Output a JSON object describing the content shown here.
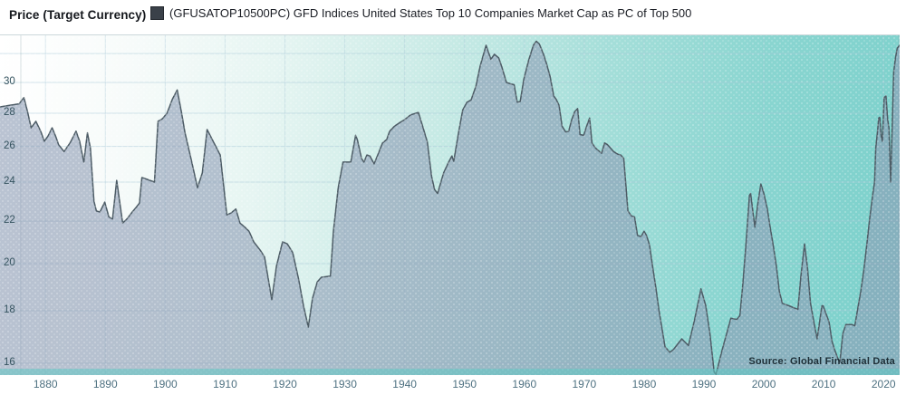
{
  "header": {
    "title": "Price (Target Currency)",
    "series_label": "(GFUSATOP10500PC) GFD Indices United States Top 10 Companies Market Cap as PC of Top 500"
  },
  "source_note": "Source: Global Financial Data",
  "colors": {
    "background_teal": "#7bd0cb",
    "area_fill": "rgba(140,155,180,0.6)",
    "line": "#4d5c66",
    "grid": "#a9c9d8",
    "legend_swatch": "#3a4149",
    "axis_band": "rgba(97,199,195,0.55)"
  },
  "chart_data": {
    "type": "area",
    "title": "(GFUSATOP10500PC) GFD Indices United States Top 10 Companies Market Cap as PC of Top 500",
    "xlabel": "",
    "ylabel": "Price (Target Currency)",
    "y_scale": "log",
    "grid": true,
    "legend_position": "top",
    "xlim": [
      1872.4,
      2022.8
    ],
    "ylim": [
      15.6,
      33.3
    ],
    "x_ticks": [
      1880,
      1890,
      1900,
      1910,
      1920,
      1930,
      1940,
      1950,
      1960,
      1970,
      1980,
      1990,
      2000,
      2010,
      2020
    ],
    "y_ticks": [
      30,
      28,
      26,
      24,
      22,
      20,
      18,
      16
    ],
    "y_gridlines": [
      32,
      30,
      28,
      26,
      24,
      22,
      20,
      18,
      16
    ],
    "series": [
      {
        "name": "(GFUSATOP10500PC) GFD Indices United States Top 10 Companies Market Cap as PC of Top 500",
        "points": [
          [
            1872.4,
            28.4
          ],
          [
            1874.0,
            28.5
          ],
          [
            1875.6,
            28.6
          ],
          [
            1876.4,
            29.0
          ],
          [
            1877.0,
            28.1
          ],
          [
            1877.6,
            27.1
          ],
          [
            1878.4,
            27.5
          ],
          [
            1879.2,
            26.9
          ],
          [
            1879.8,
            26.3
          ],
          [
            1880.4,
            26.6
          ],
          [
            1881.1,
            27.1
          ],
          [
            1881.7,
            26.6
          ],
          [
            1882.2,
            26.1
          ],
          [
            1883.1,
            25.7
          ],
          [
            1884.1,
            26.2
          ],
          [
            1885.1,
            26.9
          ],
          [
            1885.7,
            26.3
          ],
          [
            1886.4,
            25.1
          ],
          [
            1887.0,
            26.8
          ],
          [
            1887.5,
            25.9
          ],
          [
            1888.1,
            23.0
          ],
          [
            1888.5,
            22.5
          ],
          [
            1889.1,
            22.45
          ],
          [
            1889.9,
            22.95
          ],
          [
            1890.6,
            22.2
          ],
          [
            1891.2,
            22.1
          ],
          [
            1891.9,
            24.1
          ],
          [
            1892.9,
            21.9
          ],
          [
            1893.6,
            22.1
          ],
          [
            1894.5,
            22.45
          ],
          [
            1895.2,
            22.7
          ],
          [
            1895.7,
            22.9
          ],
          [
            1896.1,
            24.25
          ],
          [
            1897.0,
            24.15
          ],
          [
            1898.2,
            24.0
          ],
          [
            1898.8,
            27.5
          ],
          [
            1899.5,
            27.65
          ],
          [
            1900.3,
            28.0
          ],
          [
            1901.2,
            28.9
          ],
          [
            1902.0,
            29.5
          ],
          [
            1902.7,
            28.1
          ],
          [
            1903.3,
            26.8
          ],
          [
            1904.3,
            25.3
          ],
          [
            1905.4,
            23.7
          ],
          [
            1906.2,
            24.5
          ],
          [
            1907.0,
            27.0
          ],
          [
            1908.3,
            26.1
          ],
          [
            1909.2,
            25.5
          ],
          [
            1910.3,
            22.3
          ],
          [
            1911.0,
            22.4
          ],
          [
            1911.8,
            22.6
          ],
          [
            1912.5,
            21.9
          ],
          [
            1913.3,
            21.7
          ],
          [
            1914.0,
            21.5
          ],
          [
            1914.8,
            21.0
          ],
          [
            1915.9,
            20.6
          ],
          [
            1916.6,
            20.3
          ],
          [
            1917.8,
            18.45
          ],
          [
            1918.6,
            19.9
          ],
          [
            1919.6,
            21.0
          ],
          [
            1920.4,
            20.9
          ],
          [
            1921.3,
            20.5
          ],
          [
            1922.3,
            19.3
          ],
          [
            1923.1,
            18.2
          ],
          [
            1923.9,
            17.35
          ],
          [
            1924.6,
            18.5
          ],
          [
            1925.4,
            19.2
          ],
          [
            1926.1,
            19.4
          ],
          [
            1927.6,
            19.45
          ],
          [
            1928.1,
            21.5
          ],
          [
            1928.9,
            23.7
          ],
          [
            1929.7,
            25.1
          ],
          [
            1931.0,
            25.1
          ],
          [
            1931.8,
            26.65
          ],
          [
            1932.1,
            26.4
          ],
          [
            1932.8,
            25.3
          ],
          [
            1933.2,
            25.1
          ],
          [
            1933.7,
            25.5
          ],
          [
            1934.2,
            25.45
          ],
          [
            1934.9,
            25.0
          ],
          [
            1935.5,
            25.5
          ],
          [
            1936.3,
            26.2
          ],
          [
            1937.0,
            26.4
          ],
          [
            1937.5,
            26.9
          ],
          [
            1938.3,
            27.2
          ],
          [
            1939.1,
            27.4
          ],
          [
            1940.0,
            27.6
          ],
          [
            1941.0,
            27.9
          ],
          [
            1942.3,
            28.05
          ],
          [
            1943.0,
            27.2
          ],
          [
            1943.8,
            26.25
          ],
          [
            1944.5,
            24.3
          ],
          [
            1945.0,
            23.6
          ],
          [
            1945.5,
            23.4
          ],
          [
            1946.5,
            24.5
          ],
          [
            1947.2,
            25.0
          ],
          [
            1947.9,
            25.45
          ],
          [
            1948.2,
            25.15
          ],
          [
            1949.0,
            26.8
          ],
          [
            1949.7,
            28.2
          ],
          [
            1950.4,
            28.7
          ],
          [
            1951.1,
            28.85
          ],
          [
            1951.9,
            29.75
          ],
          [
            1952.6,
            31.1
          ],
          [
            1953.6,
            32.6
          ],
          [
            1954.4,
            31.6
          ],
          [
            1955.0,
            31.95
          ],
          [
            1955.7,
            31.7
          ],
          [
            1956.2,
            31.1
          ],
          [
            1957.0,
            30.0
          ],
          [
            1957.7,
            29.9
          ],
          [
            1958.3,
            29.85
          ],
          [
            1958.8,
            28.7
          ],
          [
            1959.3,
            28.75
          ],
          [
            1959.9,
            30.2
          ],
          [
            1960.7,
            31.5
          ],
          [
            1961.5,
            32.6
          ],
          [
            1962.0,
            32.9
          ],
          [
            1962.5,
            32.7
          ],
          [
            1963.2,
            31.95
          ],
          [
            1963.7,
            31.3
          ],
          [
            1964.3,
            30.4
          ],
          [
            1964.9,
            29.1
          ],
          [
            1965.3,
            28.9
          ],
          [
            1965.8,
            28.5
          ],
          [
            1966.3,
            27.2
          ],
          [
            1966.9,
            26.85
          ],
          [
            1967.4,
            26.9
          ],
          [
            1967.9,
            27.6
          ],
          [
            1968.4,
            28.1
          ],
          [
            1968.9,
            28.3
          ],
          [
            1969.3,
            26.7
          ],
          [
            1969.9,
            26.65
          ],
          [
            1970.4,
            27.2
          ],
          [
            1970.9,
            27.7
          ],
          [
            1971.3,
            26.2
          ],
          [
            1971.9,
            25.9
          ],
          [
            1972.4,
            25.75
          ],
          [
            1972.9,
            25.6
          ],
          [
            1973.4,
            26.2
          ],
          [
            1973.9,
            26.1
          ],
          [
            1974.9,
            25.7
          ],
          [
            1975.6,
            25.55
          ],
          [
            1976.1,
            25.5
          ],
          [
            1976.6,
            25.3
          ],
          [
            1977.3,
            22.5
          ],
          [
            1977.9,
            22.25
          ],
          [
            1978.4,
            22.2
          ],
          [
            1978.9,
            21.3
          ],
          [
            1979.5,
            21.25
          ],
          [
            1980.0,
            21.5
          ],
          [
            1980.4,
            21.3
          ],
          [
            1980.9,
            20.85
          ],
          [
            1981.4,
            19.9
          ],
          [
            1982.0,
            18.9
          ],
          [
            1982.5,
            18.0
          ],
          [
            1983.0,
            17.3
          ],
          [
            1983.5,
            16.6
          ],
          [
            1984.3,
            16.4
          ],
          [
            1984.9,
            16.5
          ],
          [
            1986.3,
            16.9
          ],
          [
            1987.4,
            16.65
          ],
          [
            1988.4,
            17.6
          ],
          [
            1989.5,
            18.9
          ],
          [
            1990.3,
            18.2
          ],
          [
            1991.0,
            17.1
          ],
          [
            1991.7,
            15.7
          ],
          [
            1992.0,
            15.6
          ],
          [
            1993.0,
            16.45
          ],
          [
            1994.5,
            17.7
          ],
          [
            1995.5,
            17.65
          ],
          [
            1996.0,
            17.8
          ],
          [
            1996.5,
            19.1
          ],
          [
            1997.0,
            20.8
          ],
          [
            1997.6,
            23.3
          ],
          [
            1997.8,
            23.4
          ],
          [
            1998.5,
            21.7
          ],
          [
            1999.0,
            22.9
          ],
          [
            1999.5,
            23.9
          ],
          [
            2000.0,
            23.4
          ],
          [
            2000.6,
            22.6
          ],
          [
            2001.0,
            21.8
          ],
          [
            2001.6,
            20.8
          ],
          [
            2002.1,
            19.9
          ],
          [
            2002.6,
            18.8
          ],
          [
            2003.1,
            18.3
          ],
          [
            2004.2,
            18.2
          ],
          [
            2005.2,
            18.1
          ],
          [
            2005.7,
            18.05
          ],
          [
            2006.2,
            19.45
          ],
          [
            2006.8,
            20.9
          ],
          [
            2007.3,
            19.8
          ],
          [
            2007.8,
            18.3
          ],
          [
            2008.4,
            17.5
          ],
          [
            2008.9,
            16.9
          ],
          [
            2009.7,
            18.2
          ],
          [
            2009.9,
            18.2
          ],
          [
            2010.9,
            17.55
          ],
          [
            2011.4,
            16.8
          ],
          [
            2011.9,
            16.45
          ],
          [
            2012.5,
            16.1
          ],
          [
            2012.7,
            16.05
          ],
          [
            2013.2,
            17.1
          ],
          [
            2013.7,
            17.45
          ],
          [
            2014.7,
            17.45
          ],
          [
            2015.2,
            17.4
          ],
          [
            2015.7,
            18.1
          ],
          [
            2016.2,
            18.8
          ],
          [
            2016.7,
            19.7
          ],
          [
            2017.2,
            20.85
          ],
          [
            2017.7,
            22.15
          ],
          [
            2018.2,
            23.35
          ],
          [
            2018.5,
            24.0
          ],
          [
            2018.7,
            25.9
          ],
          [
            2019.0,
            26.9
          ],
          [
            2019.2,
            27.7
          ],
          [
            2019.4,
            27.75
          ],
          [
            2019.6,
            26.6
          ],
          [
            2019.8,
            26.3
          ],
          [
            2020.1,
            29.0
          ],
          [
            2020.4,
            29.1
          ],
          [
            2020.7,
            27.6
          ],
          [
            2020.9,
            27.1
          ],
          [
            2021.2,
            24.0
          ],
          [
            2021.7,
            30.7
          ],
          [
            2022.0,
            31.7
          ],
          [
            2022.3,
            32.4
          ],
          [
            2022.5,
            32.5
          ],
          [
            2022.8,
            32.65
          ]
        ]
      }
    ]
  }
}
